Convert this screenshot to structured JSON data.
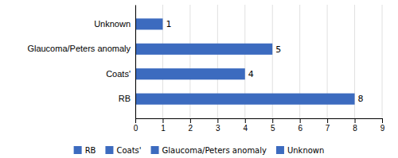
{
  "chart_data": {
    "type": "bar",
    "orientation": "horizontal",
    "categories": [
      "RB",
      "Coats'",
      "Glaucoma/Peters anomaly",
      "Unknown"
    ],
    "values": [
      8,
      4,
      5,
      1
    ],
    "color": "#3c6bbf",
    "xlim": [
      0,
      9
    ],
    "xticks": [
      0,
      1,
      2,
      3,
      4,
      5,
      6,
      7,
      8,
      9
    ],
    "data_labels": true,
    "grid": true,
    "legend": "bottom"
  }
}
